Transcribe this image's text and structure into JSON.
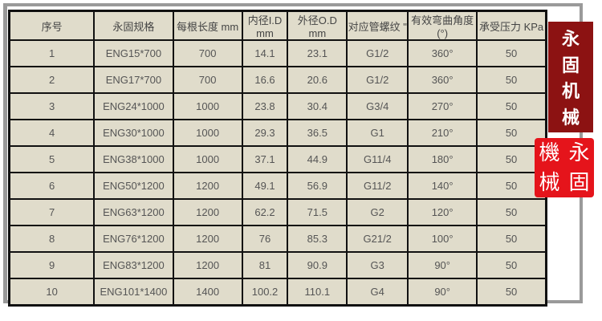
{
  "table": {
    "headers": [
      "序号",
      "永固规格",
      "每根长度 mm",
      "内径I.D mm",
      "外径O.D mm",
      "对应管螺纹 \"",
      "有效弯曲角度(°)",
      "承受压力 KPa"
    ],
    "rows": [
      [
        "1",
        "ENG15*700",
        "700",
        "14.1",
        "23.1",
        "G1/2",
        "360°",
        "50"
      ],
      [
        "2",
        "ENG17*700",
        "700",
        "16.6",
        "20.6",
        "G1/2",
        "360°",
        "50"
      ],
      [
        "3",
        "ENG24*1000",
        "1000",
        "23.8",
        "30.4",
        "G3/4",
        "270°",
        "50"
      ],
      [
        "4",
        "ENG30*1000",
        "1000",
        "29.3",
        "36.5",
        "G1",
        "210°",
        "50"
      ],
      [
        "5",
        "ENG38*1000",
        "1000",
        "37.1",
        "44.9",
        "G11/4",
        "180°",
        "50"
      ],
      [
        "6",
        "ENG50*1200",
        "1200",
        "49.1",
        "56.9",
        "G11/2",
        "140°",
        "50"
      ],
      [
        "7",
        "ENG63*1200",
        "1200",
        "62.2",
        "71.5",
        "G2",
        "120°",
        "50"
      ],
      [
        "8",
        "ENG76*1200",
        "1200",
        "76",
        "85.3",
        "G21/2",
        "100°",
        "50"
      ],
      [
        "9",
        "ENG83*1200",
        "1200",
        "81",
        "90.9",
        "G3",
        "90°",
        "50"
      ],
      [
        "10",
        "ENG101*1400",
        "1400",
        "100.2",
        "110.1",
        "G4",
        "90°",
        "50"
      ]
    ]
  },
  "banner": {
    "chars": [
      "永",
      "固",
      "机",
      "械"
    ],
    "color": "#8c1212"
  },
  "seal": {
    "chars": [
      "永",
      "固",
      "機",
      "械"
    ],
    "color": "#e5141b"
  }
}
